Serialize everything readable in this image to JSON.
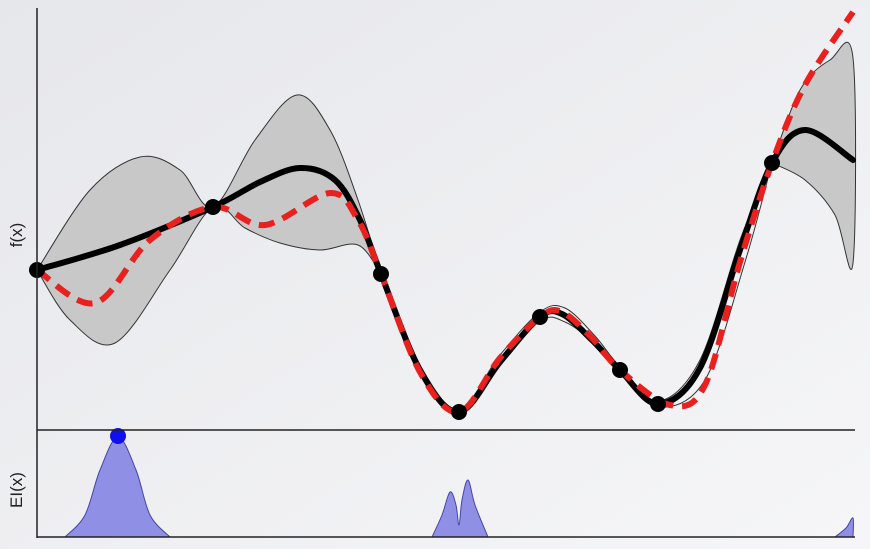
{
  "y_label_top": "f(x)",
  "y_label_bottom": "EI(x)"
}
